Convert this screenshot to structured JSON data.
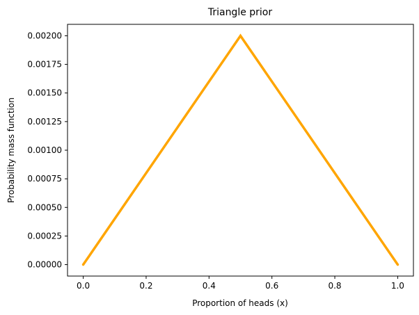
{
  "chart_data": {
    "type": "line",
    "title": "Triangle prior",
    "xlabel": "Proportion of heads (x)",
    "ylabel": "Probability mass function",
    "xlim": [
      -0.05,
      1.05
    ],
    "ylim": [
      -0.0001,
      0.0021
    ],
    "grid": false,
    "x_ticks": [
      0.0,
      0.2,
      0.4,
      0.6,
      0.8,
      1.0
    ],
    "x_tick_labels": [
      "0.0",
      "0.2",
      "0.4",
      "0.6",
      "0.8",
      "1.0"
    ],
    "y_ticks": [
      0.0,
      0.00025,
      0.0005,
      0.00075,
      0.001,
      0.00125,
      0.0015,
      0.00175,
      0.002
    ],
    "y_tick_labels": [
      "0.00000",
      "0.00025",
      "0.00050",
      "0.00075",
      "0.00100",
      "0.00125",
      "0.00150",
      "0.00175",
      "0.00200"
    ],
    "series": [
      {
        "color": "#ffa500",
        "x": [
          0.0,
          0.5,
          1.0
        ],
        "y": [
          0.0,
          0.002,
          0.0
        ]
      }
    ]
  }
}
